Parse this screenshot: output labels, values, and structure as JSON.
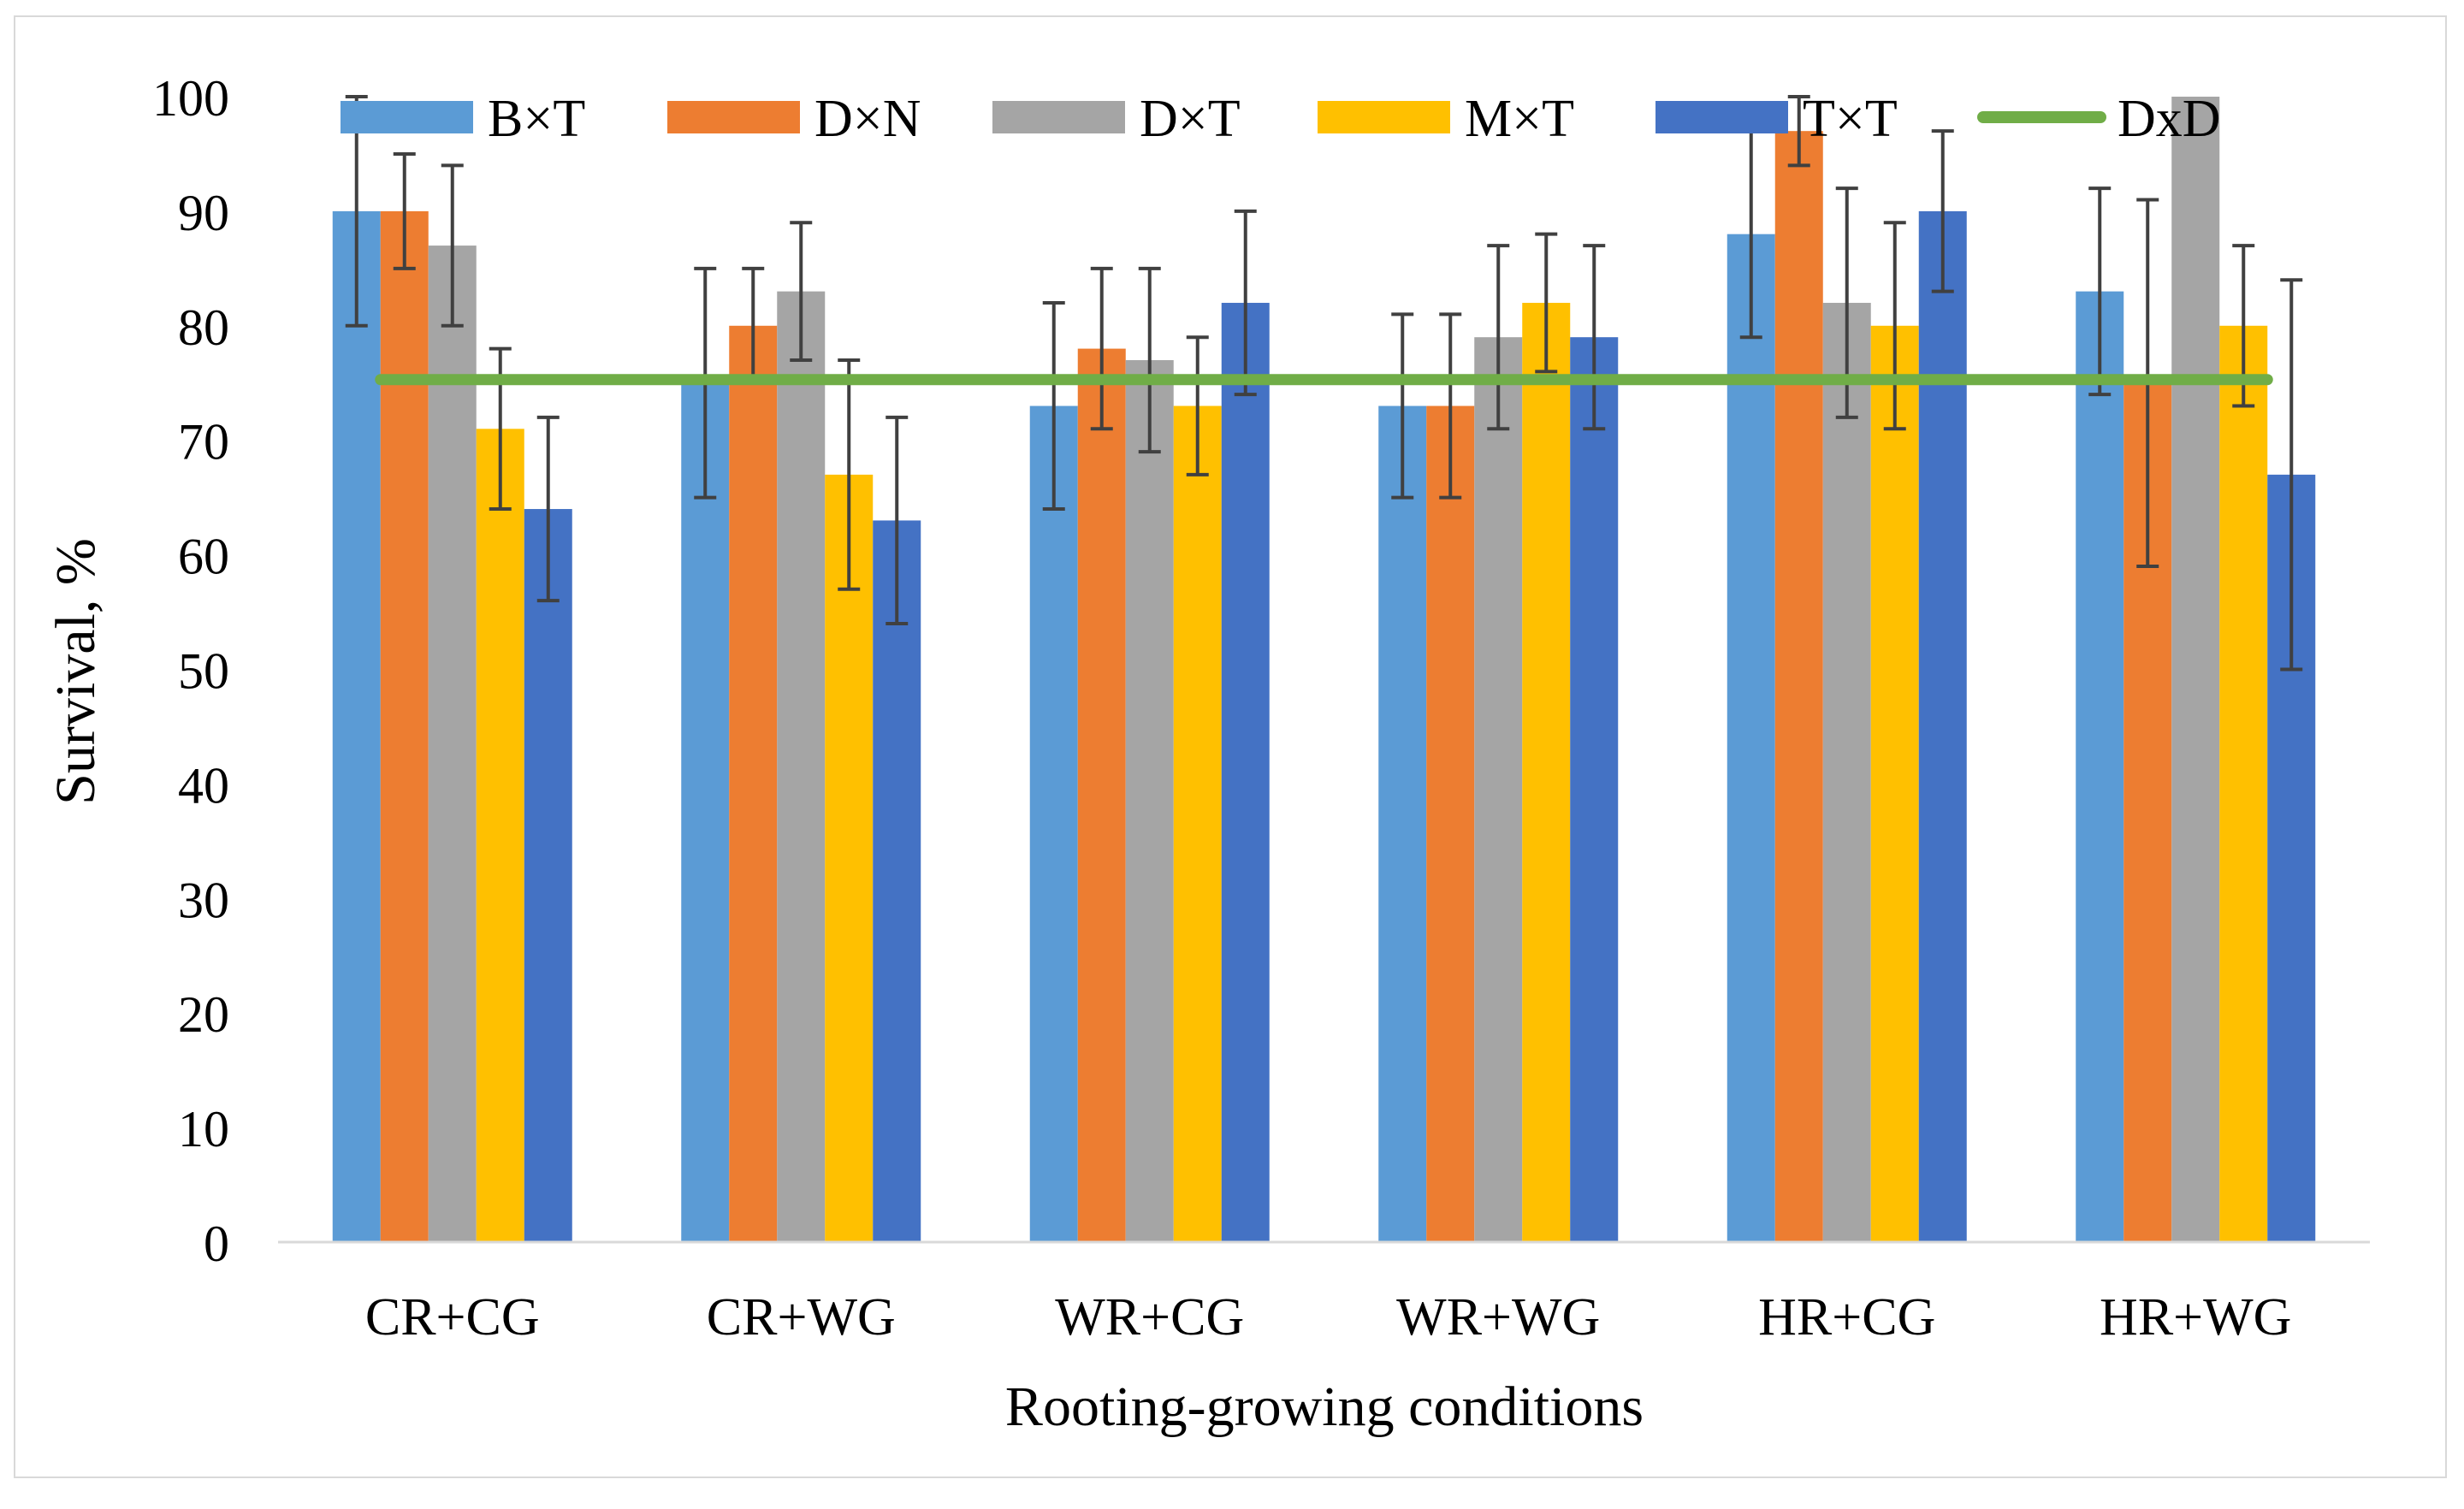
{
  "chart_data": {
    "type": "bar",
    "title": "",
    "xlabel": "Rooting-growing conditions",
    "ylabel": "Survival, %",
    "ylim": [
      0,
      100
    ],
    "yticks": [
      "0",
      "10",
      "20",
      "30",
      "40",
      "50",
      "60",
      "70",
      "80",
      "90",
      "100"
    ],
    "ytick_values": [
      0,
      10,
      20,
      30,
      40,
      50,
      60,
      70,
      80,
      90,
      100
    ],
    "categories": [
      "CR+CG",
      "CR+WG",
      "WR+CG",
      "WR+WG",
      "HR+CG",
      "HR+WG"
    ],
    "grid": false,
    "legend_position": "top",
    "series": [
      {
        "name": "B×T",
        "color": "#5b9bd5",
        "values": [
          90,
          75,
          73,
          73,
          88,
          83
        ],
        "err": [
          10,
          10,
          9,
          8,
          9,
          9
        ]
      },
      {
        "name": "D×N",
        "color": "#ed7d31",
        "values": [
          90,
          80,
          78,
          73,
          97,
          75
        ],
        "err": [
          5,
          5,
          7,
          8,
          3,
          16
        ]
      },
      {
        "name": "D×T",
        "color": "#a5a5a5",
        "values": [
          87,
          83,
          77,
          79,
          82,
          100
        ],
        "err": [
          7,
          6,
          8,
          8,
          10,
          0
        ]
      },
      {
        "name": "M×T",
        "color": "#ffc000",
        "values": [
          71,
          67,
          73,
          82,
          80,
          80
        ],
        "err": [
          7,
          10,
          6,
          6,
          9,
          7
        ]
      },
      {
        "name": "T×T",
        "color": "#4472c4",
        "values": [
          64,
          63,
          82,
          79,
          90,
          67
        ],
        "err": [
          8,
          9,
          8,
          8,
          7,
          17
        ]
      }
    ],
    "line_series": {
      "name": "DxD",
      "color": "#70ad47",
      "value": 75.3
    },
    "error_bar_color": "#404040"
  }
}
